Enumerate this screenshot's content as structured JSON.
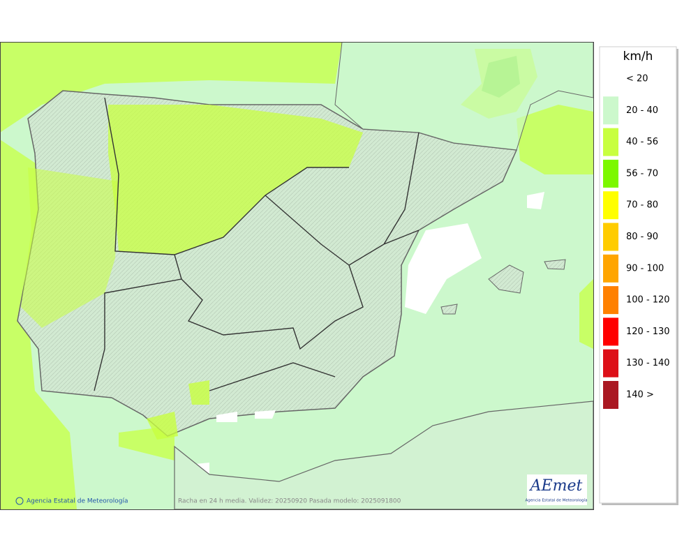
{
  "legend": {
    "title": "km/h",
    "items": [
      {
        "label": "< 20",
        "color": null
      },
      {
        "label": "20 - 40",
        "color": "#ccf8cc"
      },
      {
        "label": "40 - 56",
        "color": "#c8ff40"
      },
      {
        "label": "56 - 70",
        "color": "#7cf800"
      },
      {
        "label": "70 - 80",
        "color": "#ffff00"
      },
      {
        "label": "80 - 90",
        "color": "#ffcc00"
      },
      {
        "label": "90 - 100",
        "color": "#ffa500"
      },
      {
        "label": "100 - 120",
        "color": "#ff8000"
      },
      {
        "label": "120 - 130",
        "color": "#ff0000"
      },
      {
        "label": "130 - 140",
        "color": "#dd1018"
      },
      {
        "label": "140 >",
        "color": "#aa1822"
      }
    ]
  },
  "footer": {
    "credit": "Agencia Estatal de Meteorología",
    "caption": "Racha en 24 h media. Validez: 20250920 Pasada modelo: 2025091800"
  },
  "logo": {
    "name": "AEmet",
    "subtitle": "Agencia Estatal de Meteorología"
  }
}
